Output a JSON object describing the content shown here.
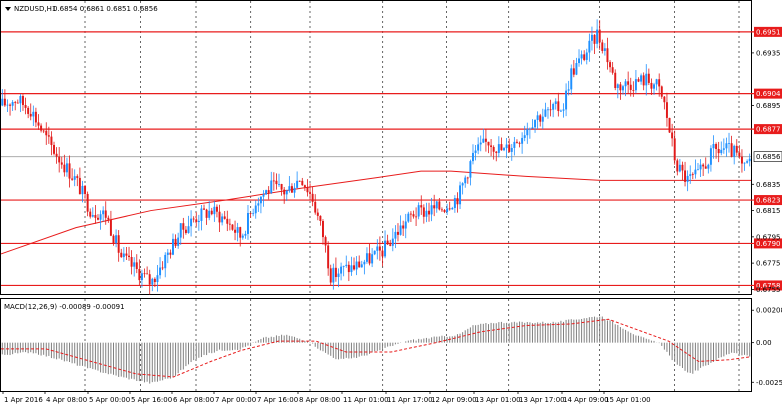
{
  "header": {
    "symbol_label": "NZDUSD,H1",
    "ohlc_label": "0.6854 0.6861 0.6851 0.6856"
  },
  "macd_header": {
    "label": "MACD(12,26,9) -0.00089 -0.00091"
  },
  "colors": {
    "bull": "#1e90ff",
    "bear": "#e11919",
    "level": "#e81c1c",
    "ma": "#e81c1c",
    "histogram": "#808080",
    "signal": "#e81c1c",
    "current_price": "#a0a0a0",
    "grid": "#000000",
    "price_tag_text": "#ffffff",
    "current_tag_bg": "#ffffff"
  },
  "price_axis": {
    "ylim": [
      0.67515,
      0.69745
    ],
    "ticks": [
      "0.6935",
      "0.6895",
      "0.6835",
      "0.6815",
      "0.6795",
      "0.6775",
      "0.6755"
    ],
    "tick_values": [
      0.6935,
      0.6895,
      0.6835,
      0.6815,
      0.6795,
      0.6775,
      0.6755
    ]
  },
  "levels": [
    {
      "value": 0.6951,
      "label": "0.6951"
    },
    {
      "value": 0.6904,
      "label": "0.6904"
    },
    {
      "value": 0.6877,
      "label": "0.6877"
    },
    {
      "value": 0.6823,
      "label": "0.6823"
    },
    {
      "value": 0.679,
      "label": "0.6790"
    },
    {
      "value": 0.6758,
      "label": "0.6758"
    }
  ],
  "current_price": {
    "value": 0.6856,
    "label": "0.6856"
  },
  "macd_axis": {
    "ylim": [
      -0.0031,
      0.0028
    ],
    "ticks": [
      "0.00208",
      "0.00",
      "-0.00254"
    ],
    "tick_values": [
      0.00208,
      0.0,
      -0.00254
    ]
  },
  "time_axis": {
    "labels": [
      "1 Apr 2016",
      "4 Apr 08:00",
      "5 Apr 00:00",
      "5 Apr 16:00",
      "6 Apr 08:00",
      "7 Apr 00:00",
      "7 Apr 16:00",
      "8 Apr 08:00",
      "11 Apr 01:00",
      "11 Apr 17:00",
      "12 Apr 09:00",
      "13 Apr 01:00",
      "13 Apr 17:00",
      "14 Apr 09:00",
      "15 Apr 01:00"
    ],
    "grid_fractions": [
      0.112,
      0.186,
      0.26,
      0.333,
      0.412,
      0.509,
      0.594,
      0.677,
      0.798,
      0.898,
      0.984
    ]
  },
  "chart_data": {
    "type": "candlestick",
    "symbol": "NZDUSD",
    "timeframe": "H1",
    "close_path": [
      [
        0.0,
        0.6895
      ],
      [
        0.02,
        0.69
      ],
      [
        0.04,
        0.6892
      ],
      [
        0.06,
        0.687
      ],
      [
        0.08,
        0.6853
      ],
      [
        0.1,
        0.6838
      ],
      [
        0.12,
        0.6815
      ],
      [
        0.14,
        0.6812
      ],
      [
        0.16,
        0.678
      ],
      [
        0.18,
        0.677
      ],
      [
        0.2,
        0.676
      ],
      [
        0.22,
        0.678
      ],
      [
        0.24,
        0.68
      ],
      [
        0.26,
        0.681
      ],
      [
        0.28,
        0.6815
      ],
      [
        0.3,
        0.6808
      ],
      [
        0.32,
        0.6795
      ],
      [
        0.34,
        0.6823
      ],
      [
        0.36,
        0.6833
      ],
      [
        0.38,
        0.6829
      ],
      [
        0.4,
        0.6841
      ],
      [
        0.415,
        0.6825
      ],
      [
        0.43,
        0.6795
      ],
      [
        0.44,
        0.6765
      ],
      [
        0.455,
        0.677
      ],
      [
        0.47,
        0.6772
      ],
      [
        0.49,
        0.6778
      ],
      [
        0.51,
        0.6785
      ],
      [
        0.53,
        0.68
      ],
      [
        0.55,
        0.6813
      ],
      [
        0.57,
        0.6815
      ],
      [
        0.59,
        0.6818
      ],
      [
        0.61,
        0.6826
      ],
      [
        0.63,
        0.6858
      ],
      [
        0.65,
        0.6868
      ],
      [
        0.67,
        0.686
      ],
      [
        0.69,
        0.687
      ],
      [
        0.71,
        0.6885
      ],
      [
        0.73,
        0.689
      ],
      [
        0.75,
        0.6895
      ],
      [
        0.76,
        0.692
      ],
      [
        0.78,
        0.6935
      ],
      [
        0.795,
        0.695
      ],
      [
        0.805,
        0.6938
      ],
      [
        0.82,
        0.691
      ],
      [
        0.84,
        0.6912
      ],
      [
        0.86,
        0.6915
      ],
      [
        0.875,
        0.691
      ],
      [
        0.885,
        0.6895
      ],
      [
        0.9,
        0.685
      ],
      [
        0.915,
        0.6838
      ],
      [
        0.93,
        0.6842
      ],
      [
        0.95,
        0.686
      ],
      [
        0.965,
        0.6862
      ],
      [
        0.98,
        0.6858
      ],
      [
        0.99,
        0.6845
      ],
      [
        1.0,
        0.6856
      ]
    ],
    "moving_average": [
      [
        0.0,
        0.6782
      ],
      [
        0.1,
        0.6802
      ],
      [
        0.2,
        0.6815
      ],
      [
        0.3,
        0.6823
      ],
      [
        0.4,
        0.6832
      ],
      [
        0.5,
        0.684
      ],
      [
        0.56,
        0.6845
      ],
      [
        0.6,
        0.6845
      ],
      [
        0.7,
        0.6841
      ],
      [
        0.8,
        0.6838
      ],
      [
        0.9,
        0.6838
      ],
      [
        1.0,
        0.6838
      ]
    ],
    "macd_histogram": [
      [
        0.0,
        -0.0008
      ],
      [
        0.04,
        -0.0006
      ],
      [
        0.08,
        -0.0011
      ],
      [
        0.12,
        -0.0017
      ],
      [
        0.16,
        -0.0022
      ],
      [
        0.2,
        -0.0026
      ],
      [
        0.23,
        -0.0022
      ],
      [
        0.26,
        -0.001
      ],
      [
        0.29,
        -0.0005
      ],
      [
        0.32,
        -0.0004
      ],
      [
        0.35,
        0.0003
      ],
      [
        0.38,
        0.0005
      ],
      [
        0.41,
        0.0001
      ],
      [
        0.43,
        -0.0006
      ],
      [
        0.45,
        -0.0011
      ],
      [
        0.48,
        -0.0009
      ],
      [
        0.51,
        -0.0004
      ],
      [
        0.54,
        0.0001
      ],
      [
        0.57,
        0.0003
      ],
      [
        0.61,
        0.0005
      ],
      [
        0.63,
        0.0011
      ],
      [
        0.66,
        0.0013
      ],
      [
        0.7,
        0.0013
      ],
      [
        0.74,
        0.0013
      ],
      [
        0.78,
        0.0016
      ],
      [
        0.8,
        0.0017
      ],
      [
        0.82,
        0.0012
      ],
      [
        0.85,
        0.0004
      ],
      [
        0.88,
        -0.0001
      ],
      [
        0.9,
        -0.0014
      ],
      [
        0.92,
        -0.002
      ],
      [
        0.95,
        -0.0012
      ],
      [
        0.975,
        -0.0006
      ],
      [
        1.0,
        -0.0009
      ]
    ],
    "macd_signal": [
      [
        0.0,
        -0.0004
      ],
      [
        0.06,
        -0.0004
      ],
      [
        0.12,
        -0.0012
      ],
      [
        0.18,
        -0.002
      ],
      [
        0.23,
        -0.0022
      ],
      [
        0.28,
        -0.0012
      ],
      [
        0.32,
        -0.0005
      ],
      [
        0.37,
        0.0001
      ],
      [
        0.42,
        0.0001
      ],
      [
        0.46,
        -0.0006
      ],
      [
        0.52,
        -0.0006
      ],
      [
        0.58,
        0.0
      ],
      [
        0.64,
        0.0007
      ],
      [
        0.7,
        0.0011
      ],
      [
        0.76,
        0.0012
      ],
      [
        0.81,
        0.0015
      ],
      [
        0.85,
        0.0008
      ],
      [
        0.89,
        0.0001
      ],
      [
        0.93,
        -0.0012
      ],
      [
        0.97,
        -0.0011
      ],
      [
        1.0,
        -0.0009
      ]
    ]
  }
}
